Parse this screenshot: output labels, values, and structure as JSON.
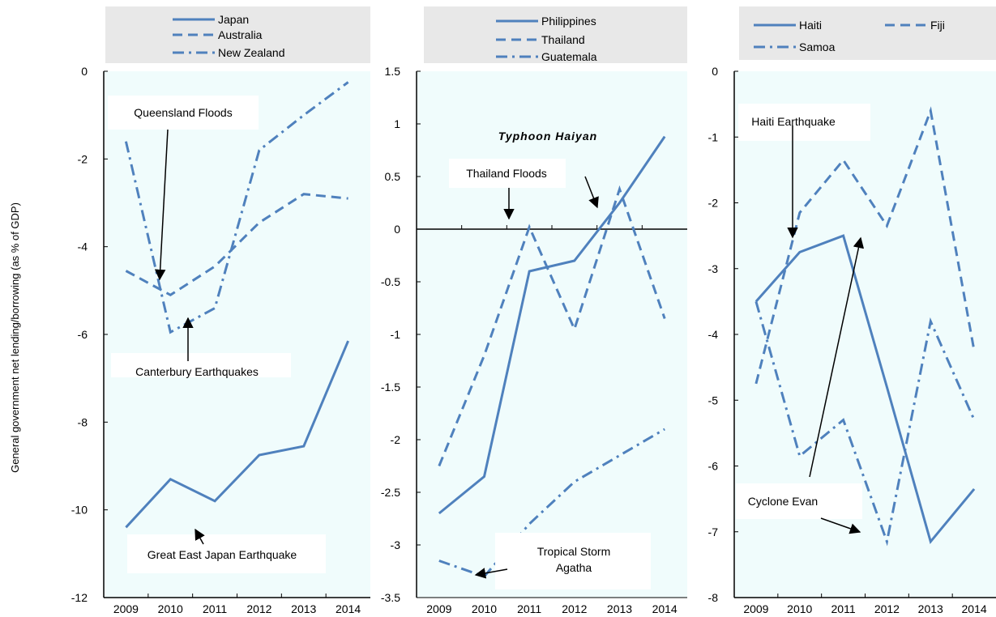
{
  "ylabel": "General government net lending/borrowing (as % of GDP)",
  "colors": {
    "series": "#4f81bd",
    "plot_bg": "#f0fcfc",
    "legend_bg": "#e8e8e8"
  },
  "chart_data": [
    {
      "type": "line",
      "x": [
        "2009",
        "2010",
        "2011",
        "2012",
        "2013",
        "2014"
      ],
      "ylim": [
        -12,
        0
      ],
      "yticks": [
        "0",
        "-2",
        "-4",
        "-6",
        "-8",
        "-10",
        "-12"
      ],
      "legend_columns": 1,
      "series": [
        {
          "name": "Japan",
          "style": "solid",
          "values": [
            -10.4,
            -9.3,
            -9.8,
            -8.75,
            -8.55,
            -6.15
          ]
        },
        {
          "name": "Australia",
          "style": "dash",
          "values": [
            -4.55,
            -5.1,
            -4.45,
            -3.45,
            -2.8,
            -2.9
          ]
        },
        {
          "name": "New Zealand",
          "style": "dashdot",
          "values": [
            -1.6,
            -5.95,
            -5.4,
            -1.8,
            -1.0,
            -0.25
          ]
        }
      ],
      "annotations": [
        {
          "text": "Queensland Floods"
        },
        {
          "text": "Canterbury Earthquakes"
        },
        {
          "text": "Great East Japan Earthquake"
        }
      ]
    },
    {
      "type": "line",
      "x": [
        "2009",
        "2010",
        "2011",
        "2012",
        "2013",
        "2014"
      ],
      "ylim": [
        -3.5,
        1.5
      ],
      "yticks": [
        "1.5",
        "1",
        "0.5",
        "0",
        "-0.5",
        "-1",
        "-1.5",
        "-2",
        "-2.5",
        "-3",
        "-3.5"
      ],
      "legend_columns": 1,
      "series": [
        {
          "name": "Philippines",
          "style": "solid",
          "values": [
            -2.7,
            -2.35,
            -0.4,
            -0.3,
            0.25,
            0.88
          ]
        },
        {
          "name": "Thailand",
          "style": "dash",
          "values": [
            -2.25,
            -1.2,
            0.02,
            -0.95,
            0.38,
            -0.85
          ]
        },
        {
          "name": "Guatemala",
          "style": "dashdot",
          "values": [
            -3.15,
            -3.3,
            -2.8,
            -2.4,
            -2.15,
            -1.9
          ]
        }
      ],
      "annotations": [
        {
          "text": "Typhoon Haiyan"
        },
        {
          "text": "Thailand Floods"
        },
        {
          "text": "Tropical Storm"
        },
        {
          "text": "Agatha"
        }
      ]
    },
    {
      "type": "line",
      "x": [
        "2009",
        "2010",
        "2011",
        "2012",
        "2013",
        "2014"
      ],
      "ylim": [
        -8,
        0
      ],
      "yticks": [
        "0",
        "-1",
        "-2",
        "-3",
        "-4",
        "-5",
        "-6",
        "-7",
        "-8"
      ],
      "legend_columns": 2,
      "series": [
        {
          "name": "Haiti",
          "style": "solid",
          "values": [
            -3.5,
            -2.75,
            -2.5,
            -4.8,
            -7.15,
            -6.35
          ]
        },
        {
          "name": "Fiji",
          "style": "dash",
          "values": [
            -4.75,
            -2.15,
            -1.35,
            -2.35,
            -0.6,
            -4.25
          ]
        },
        {
          "name": "Samoa",
          "style": "dashdot",
          "values": [
            -3.5,
            -5.85,
            -5.3,
            -7.15,
            -3.8,
            -5.3
          ]
        }
      ],
      "annotations": [
        {
          "text": "Haiti Earthquake"
        },
        {
          "text": "Cyclone Evan"
        }
      ]
    }
  ]
}
